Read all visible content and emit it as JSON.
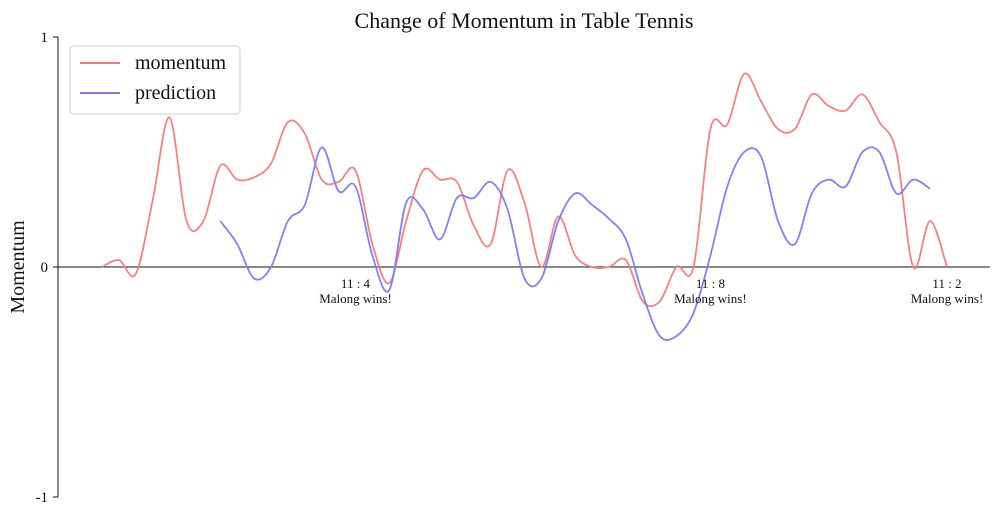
{
  "chart_data": {
    "type": "line",
    "title": "Change of Momentum in Table Tennis",
    "ylabel": "Momentum",
    "ylim": [
      -1,
      1
    ],
    "yticks": [
      1,
      0,
      -1
    ],
    "legend": "upper left",
    "series": [
      {
        "name": "momentum",
        "color": "#f47b7b",
        "values": [
          0,
          0.03,
          -0.03,
          0.29,
          0.65,
          0.2,
          0.2,
          0.44,
          0.38,
          0.39,
          0.45,
          0.63,
          0.58,
          0.38,
          0.37,
          0.42,
          0.1,
          -0.07,
          0.2,
          0.42,
          0.38,
          0.37,
          0.18,
          0.1,
          0.42,
          0.28,
          0,
          0.22,
          0.05,
          0,
          0,
          0.03,
          -0.15,
          -0.15,
          0,
          0,
          0.6,
          0.62,
          0.84,
          0.72,
          0.6,
          0.6,
          0.75,
          0.7,
          0.68,
          0.75,
          0.63,
          0.5,
          0,
          0.2,
          0
        ]
      },
      {
        "name": "prediction",
        "color": "#7b7bf5",
        "values": [
          null,
          null,
          null,
          null,
          null,
          null,
          null,
          0.2,
          0.1,
          -0.05,
          0,
          0.2,
          0.27,
          0.52,
          0.33,
          0.35,
          0.05,
          -0.1,
          0.28,
          0.25,
          0.12,
          0.3,
          0.3,
          0.37,
          0.25,
          -0.05,
          -0.05,
          0.2,
          0.32,
          0.27,
          0.21,
          0.12,
          -0.12,
          -0.3,
          -0.3,
          -0.2,
          0.05,
          0.35,
          0.5,
          0.48,
          0.2,
          0.1,
          0.32,
          0.38,
          0.35,
          0.5,
          0.5,
          0.32,
          0.38,
          0.34,
          null
        ]
      }
    ],
    "annotations": [
      {
        "x": 15,
        "lines": [
          "11 : 4",
          "Malong wins!"
        ]
      },
      {
        "x": 36,
        "lines": [
          "11 : 8",
          "Malong wins!"
        ]
      },
      {
        "x": 50,
        "lines": [
          "11 : 2",
          "Malong wins!"
        ]
      }
    ]
  }
}
